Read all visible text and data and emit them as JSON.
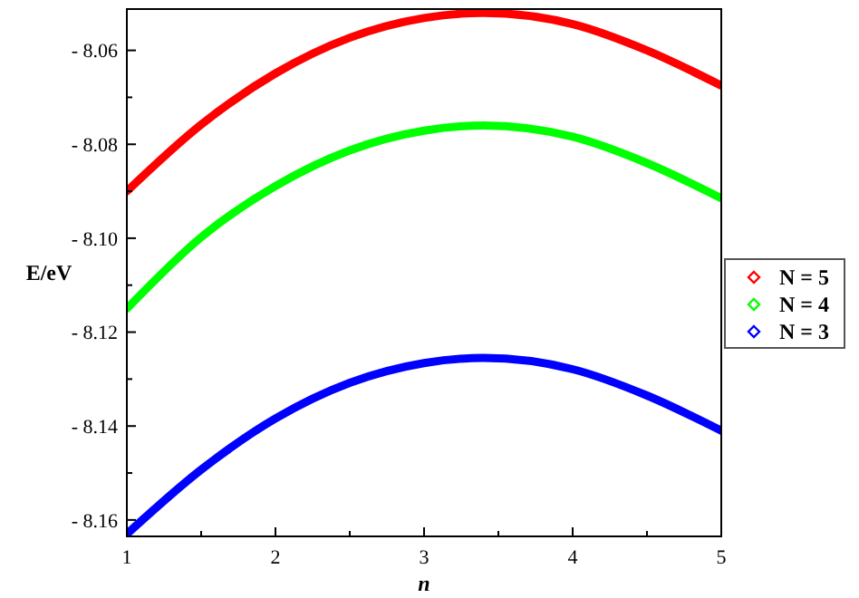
{
  "chart_data": {
    "type": "line",
    "xlabel": "n",
    "ylabel": "E/eV",
    "x": [
      1,
      1.5,
      2,
      2.5,
      3,
      3.4,
      4,
      4.5,
      5
    ],
    "series": [
      {
        "name": "N = 5",
        "color": "#ff0000",
        "values": [
          -8.09,
          -8.0758,
          -8.0649,
          -8.0573,
          -8.0531,
          -8.052,
          -8.0544,
          -8.06,
          -8.0675
        ]
      },
      {
        "name": "N = 4",
        "color": "#00ff00",
        "values": [
          -8.115,
          -8.0998,
          -8.0889,
          -8.0813,
          -8.0771,
          -8.076,
          -8.0784,
          -8.084,
          -8.0915
        ]
      },
      {
        "name": "N = 3",
        "color": "#0000ff",
        "values": [
          -8.163,
          -8.1493,
          -8.1384,
          -8.1308,
          -8.1266,
          -8.1255,
          -8.1279,
          -8.1335,
          -8.141
        ]
      }
    ],
    "xlim": [
      1,
      5
    ],
    "ylim": [
      -8.1635,
      -8.0512
    ],
    "xticks": [
      1,
      {
        "value": 1.5,
        "label": null
      },
      2,
      {
        "value": 2.5,
        "label": null
      },
      3,
      {
        "value": 3.5,
        "label": null
      },
      4,
      {
        "value": 4.5,
        "label": null
      },
      5
    ],
    "yticks": [
      {
        "value": -8.16,
        "label": "- 8.16"
      },
      {
        "value": -8.15,
        "label": null
      },
      {
        "value": -8.14,
        "label": "- 8.14"
      },
      {
        "value": -8.13,
        "label": null
      },
      {
        "value": -8.12,
        "label": "- 8.12"
      },
      {
        "value": -8.11,
        "label": null
      },
      {
        "value": -8.1,
        "label": "- 8.10"
      },
      {
        "value": -8.09,
        "label": null
      },
      {
        "value": -8.08,
        "label": "- 8.08"
      },
      {
        "value": -8.07,
        "label": null
      },
      {
        "value": -8.06,
        "label": "- 8.06"
      }
    ],
    "grid": false,
    "legend": "right",
    "line_style": "solid"
  }
}
